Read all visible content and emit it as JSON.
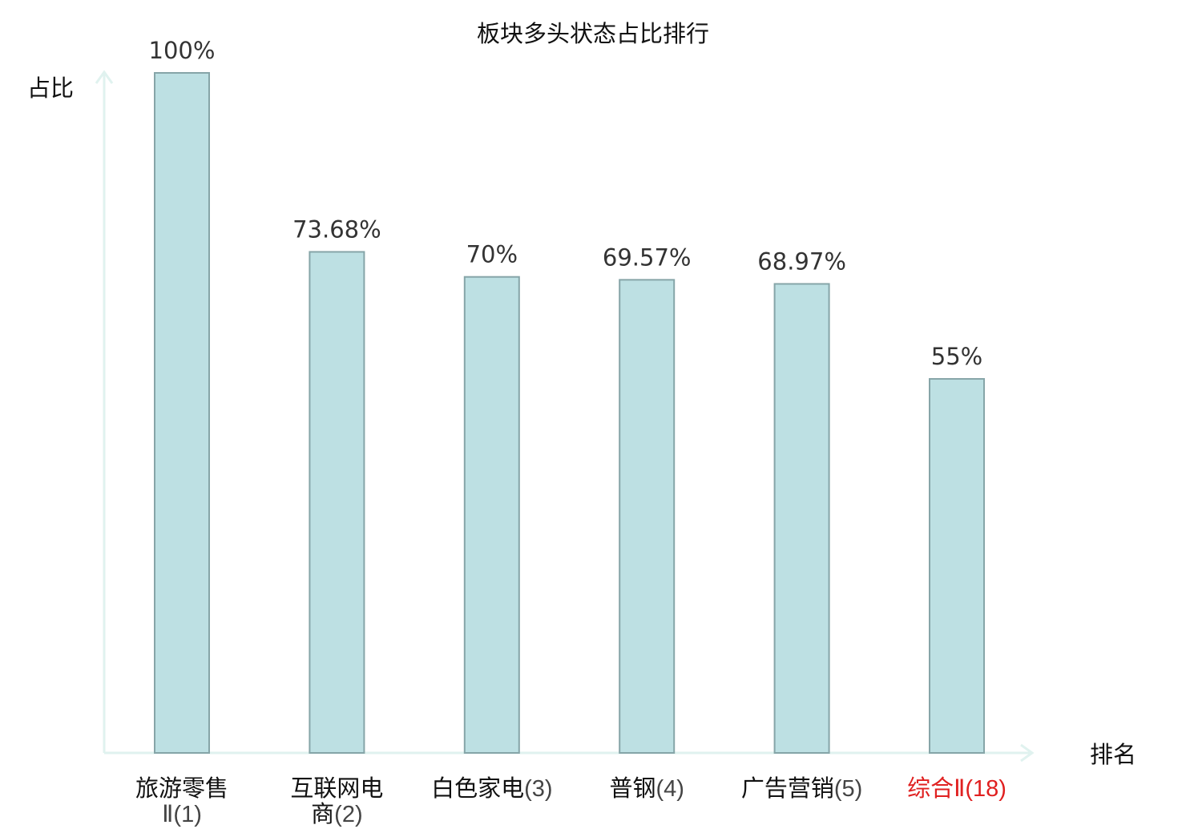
{
  "chart_data": {
    "type": "bar",
    "title": "板块多头状态占比排行",
    "xlabel": "排名",
    "ylabel": "占比",
    "categories": [
      {
        "lines": [
          {
            "name": "旅游零售",
            "rank": ""
          },
          {
            "name": "",
            "rank": "Ⅱ(1)"
          }
        ],
        "highlight": false
      },
      {
        "lines": [
          {
            "name": "互联网电",
            "rank": ""
          },
          {
            "name": "商",
            "rank": "(2)"
          }
        ],
        "highlight": false
      },
      {
        "lines": [
          {
            "name": "白色家电",
            "rank": "(3)"
          }
        ],
        "highlight": false
      },
      {
        "lines": [
          {
            "name": "普钢",
            "rank": "(4)"
          }
        ],
        "highlight": false
      },
      {
        "lines": [
          {
            "name": "广告营销",
            "rank": "(5)"
          }
        ],
        "highlight": false
      },
      {
        "lines": [
          {
            "name": "综合",
            "rank": "Ⅱ(18)"
          }
        ],
        "highlight": true
      }
    ],
    "values": [
      100,
      73.68,
      70,
      69.57,
      68.97,
      55
    ],
    "value_labels": [
      "100%",
      "73.68%",
      "70%",
      "69.57%",
      "68.97%",
      "55%"
    ],
    "ylim": [
      0,
      100
    ],
    "grid": false,
    "colors": {
      "bar_fill": "#bde0e3",
      "bar_stroke": "#86a5a8",
      "axis": "#e0f2ef",
      "highlight_text": "#e02020",
      "text": "#111111",
      "value_text": "#333333"
    }
  }
}
